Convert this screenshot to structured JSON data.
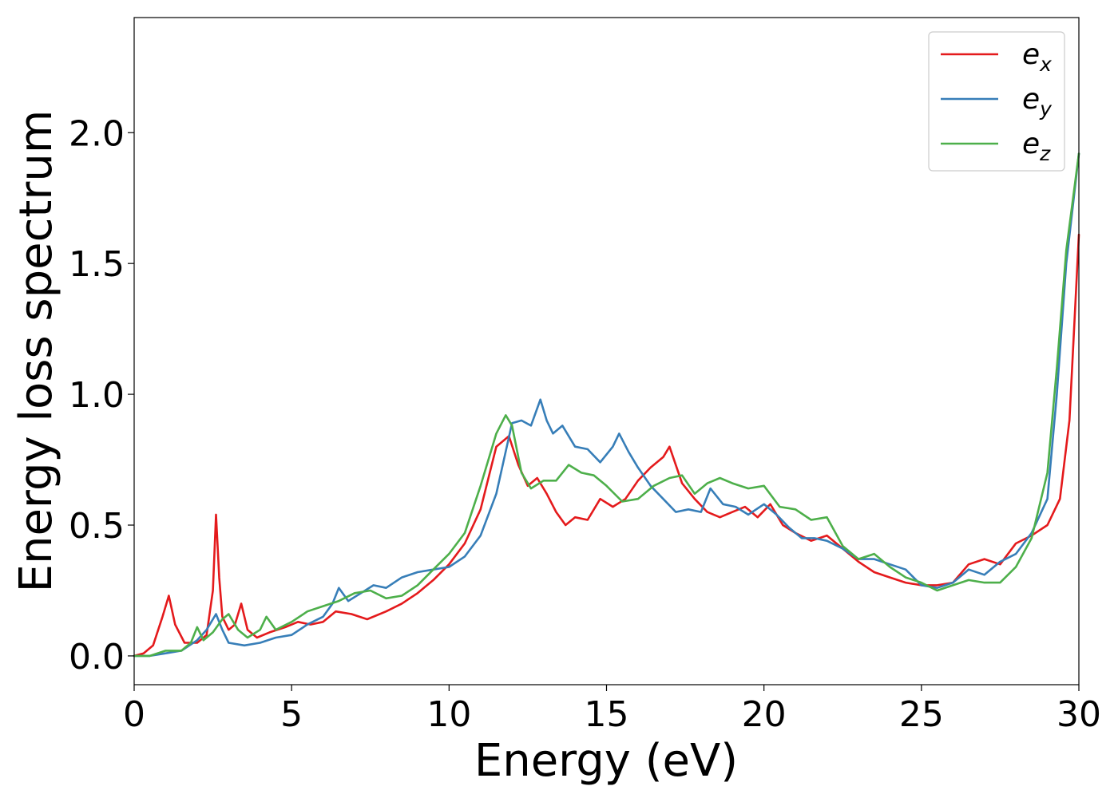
{
  "chart_data": {
    "type": "line",
    "title": "",
    "xlabel": "Energy (eV)",
    "ylabel": "Energy loss spectrum",
    "xlim": [
      0,
      30
    ],
    "ylim": [
      -0.11,
      2.44
    ],
    "xticks": [
      0,
      5,
      10,
      15,
      20,
      25,
      30
    ],
    "xtick_labels": [
      "0",
      "5",
      "10",
      "15",
      "20",
      "25",
      "30"
    ],
    "yticks": [
      0.0,
      0.5,
      1.0,
      1.5,
      2.0
    ],
    "ytick_labels": [
      "0.0",
      "0.5",
      "1.0",
      "1.5",
      "2.0"
    ],
    "grid": false,
    "legend_position": "top-right",
    "series": [
      {
        "name": "e_x",
        "label_base": "e",
        "label_sub": "x",
        "color": "#e41a1c",
        "x": [
          0,
          0.3,
          0.6,
          0.9,
          1.1,
          1.3,
          1.6,
          2.0,
          2.3,
          2.5,
          2.6,
          2.7,
          2.8,
          3.0,
          3.2,
          3.4,
          3.6,
          3.9,
          4.3,
          4.8,
          5.2,
          5.6,
          6.0,
          6.4,
          6.9,
          7.4,
          8.0,
          8.5,
          9.0,
          9.5,
          10.0,
          10.5,
          11.0,
          11.5,
          11.9,
          12.2,
          12.5,
          12.8,
          13.1,
          13.4,
          13.7,
          14.0,
          14.4,
          14.8,
          15.2,
          15.6,
          16.0,
          16.4,
          16.8,
          17.0,
          17.4,
          17.8,
          18.2,
          18.6,
          19.0,
          19.4,
          19.8,
          20.2,
          20.6,
          21.0,
          21.5,
          22.0,
          22.5,
          23.0,
          23.5,
          24.0,
          24.5,
          25.0,
          25.5,
          26.0,
          26.5,
          27.0,
          27.5,
          28.0,
          28.5,
          29.0,
          29.4,
          29.7,
          30.0
        ],
        "y": [
          0.0,
          0.01,
          0.04,
          0.15,
          0.23,
          0.12,
          0.05,
          0.05,
          0.08,
          0.25,
          0.54,
          0.3,
          0.15,
          0.1,
          0.12,
          0.2,
          0.1,
          0.07,
          0.09,
          0.11,
          0.13,
          0.12,
          0.13,
          0.17,
          0.16,
          0.14,
          0.17,
          0.2,
          0.24,
          0.29,
          0.35,
          0.43,
          0.56,
          0.8,
          0.84,
          0.73,
          0.65,
          0.68,
          0.62,
          0.55,
          0.5,
          0.53,
          0.52,
          0.6,
          0.57,
          0.6,
          0.67,
          0.72,
          0.76,
          0.8,
          0.66,
          0.6,
          0.55,
          0.53,
          0.55,
          0.57,
          0.53,
          0.58,
          0.5,
          0.47,
          0.44,
          0.46,
          0.41,
          0.36,
          0.32,
          0.3,
          0.28,
          0.27,
          0.27,
          0.28,
          0.35,
          0.37,
          0.35,
          0.43,
          0.46,
          0.5,
          0.6,
          0.9,
          1.61
        ]
      },
      {
        "name": "e_y",
        "label_base": "e",
        "label_sub": "y",
        "color": "#377eb8",
        "x": [
          0,
          0.5,
          1.0,
          1.5,
          2.0,
          2.3,
          2.6,
          2.8,
          3.0,
          3.5,
          4.0,
          4.5,
          5.0,
          5.5,
          6.0,
          6.3,
          6.5,
          6.8,
          7.2,
          7.6,
          8.0,
          8.5,
          9.0,
          9.5,
          10.0,
          10.5,
          11.0,
          11.5,
          12.0,
          12.3,
          12.6,
          12.9,
          13.1,
          13.3,
          13.6,
          14.0,
          14.4,
          14.8,
          15.2,
          15.4,
          15.7,
          16.0,
          16.4,
          16.8,
          17.2,
          17.6,
          18.0,
          18.3,
          18.7,
          19.1,
          19.5,
          20.0,
          20.4,
          20.8,
          21.2,
          21.6,
          22.0,
          22.5,
          23.0,
          23.5,
          24.0,
          24.5,
          25.0,
          25.5,
          26.0,
          26.5,
          27.0,
          27.5,
          28.0,
          28.5,
          29.0,
          29.3,
          29.6,
          30.0
        ],
        "y": [
          0.0,
          0.0,
          0.01,
          0.02,
          0.06,
          0.1,
          0.16,
          0.1,
          0.05,
          0.04,
          0.05,
          0.07,
          0.08,
          0.12,
          0.15,
          0.2,
          0.26,
          0.21,
          0.24,
          0.27,
          0.26,
          0.3,
          0.32,
          0.33,
          0.34,
          0.38,
          0.46,
          0.62,
          0.89,
          0.9,
          0.88,
          0.98,
          0.9,
          0.85,
          0.88,
          0.8,
          0.79,
          0.74,
          0.8,
          0.85,
          0.78,
          0.72,
          0.65,
          0.6,
          0.55,
          0.56,
          0.55,
          0.64,
          0.58,
          0.57,
          0.54,
          0.58,
          0.54,
          0.49,
          0.45,
          0.45,
          0.44,
          0.41,
          0.37,
          0.37,
          0.35,
          0.33,
          0.27,
          0.26,
          0.28,
          0.33,
          0.31,
          0.36,
          0.39,
          0.47,
          0.6,
          1.0,
          1.5,
          1.92
        ]
      },
      {
        "name": "e_z",
        "label_base": "e",
        "label_sub": "z",
        "color": "#4daf4a",
        "x": [
          0,
          0.5,
          1.0,
          1.5,
          1.8,
          2.0,
          2.2,
          2.5,
          2.8,
          3.0,
          3.3,
          3.6,
          4.0,
          4.2,
          4.5,
          5.0,
          5.5,
          6.0,
          6.5,
          7.0,
          7.5,
          8.0,
          8.5,
          9.0,
          9.5,
          10.0,
          10.5,
          11.0,
          11.5,
          11.8,
          12.0,
          12.3,
          12.6,
          13.0,
          13.4,
          13.8,
          14.2,
          14.6,
          15.0,
          15.5,
          16.0,
          16.5,
          17.0,
          17.4,
          17.8,
          18.2,
          18.6,
          19.0,
          19.5,
          20.0,
          20.5,
          21.0,
          21.5,
          22.0,
          22.5,
          23.0,
          23.5,
          24.0,
          24.5,
          25.0,
          25.5,
          26.0,
          26.5,
          27.0,
          27.5,
          28.0,
          28.5,
          29.0,
          29.3,
          29.6,
          30.0
        ],
        "y": [
          0.0,
          0.0,
          0.02,
          0.02,
          0.05,
          0.11,
          0.06,
          0.09,
          0.14,
          0.16,
          0.1,
          0.07,
          0.1,
          0.15,
          0.1,
          0.13,
          0.17,
          0.19,
          0.21,
          0.24,
          0.25,
          0.22,
          0.23,
          0.27,
          0.33,
          0.39,
          0.47,
          0.65,
          0.85,
          0.92,
          0.88,
          0.7,
          0.64,
          0.67,
          0.67,
          0.73,
          0.7,
          0.69,
          0.65,
          0.59,
          0.6,
          0.65,
          0.68,
          0.69,
          0.62,
          0.66,
          0.68,
          0.66,
          0.64,
          0.65,
          0.57,
          0.56,
          0.52,
          0.53,
          0.42,
          0.37,
          0.39,
          0.34,
          0.3,
          0.28,
          0.25,
          0.27,
          0.29,
          0.28,
          0.28,
          0.34,
          0.45,
          0.7,
          1.1,
          1.55,
          1.92
        ]
      }
    ]
  }
}
